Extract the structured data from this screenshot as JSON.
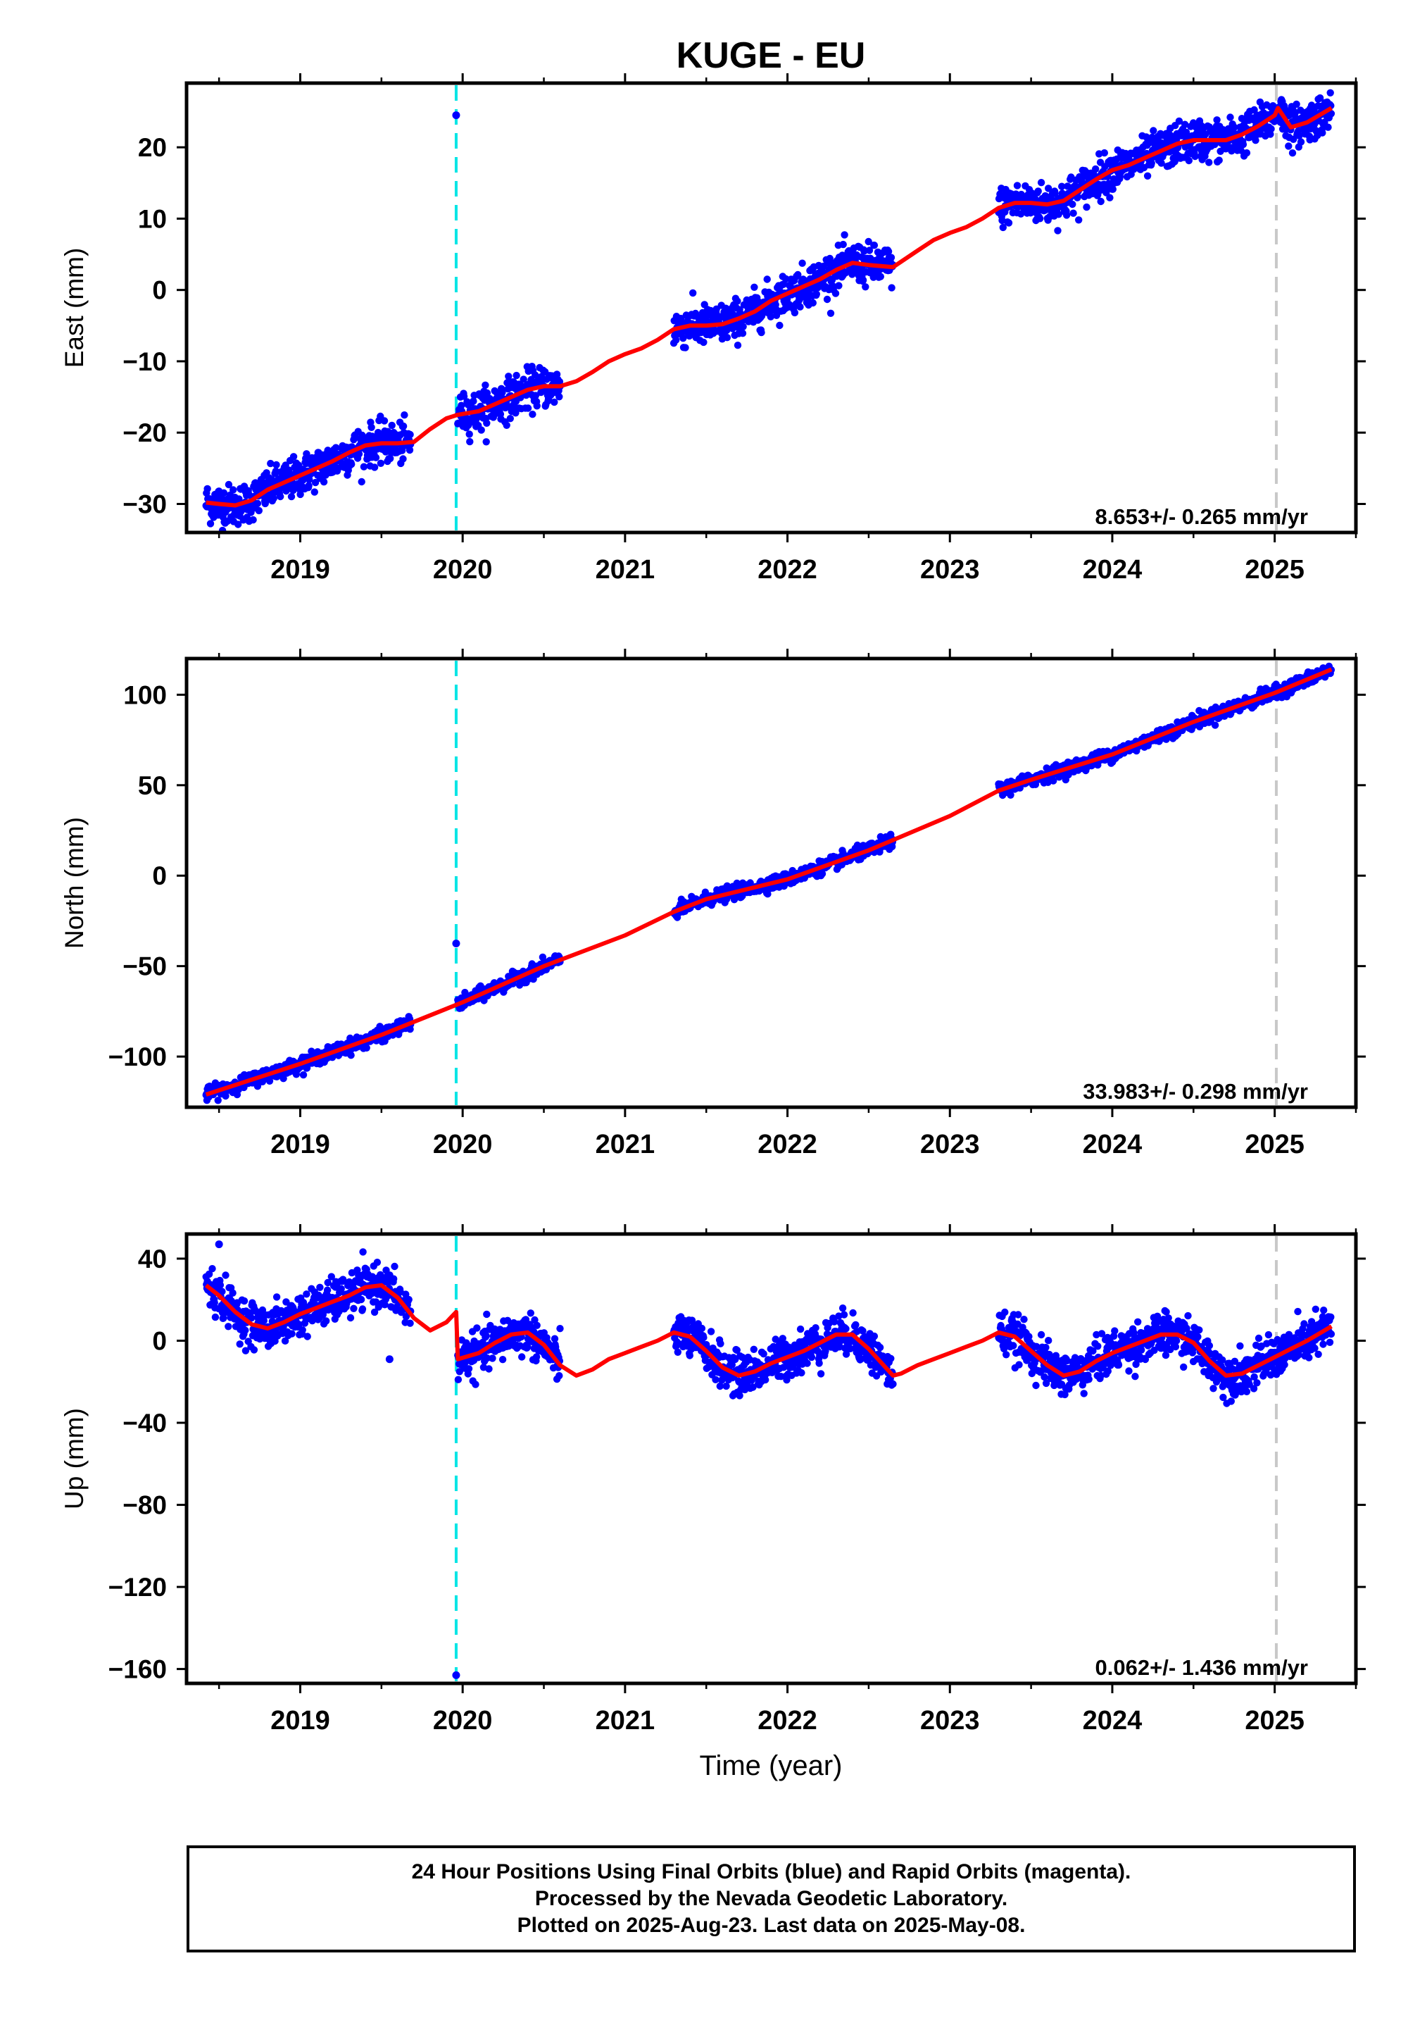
{
  "title": "KUGE - EU",
  "xlabel": "Time (year)",
  "colors": {
    "final_orbits": "#0000ff",
    "model": "#ff0000",
    "step_antenna": "#00e5e5",
    "step_other": "#c8c8c8",
    "axes": "#000000"
  },
  "footer": {
    "line1": "24 Hour Positions Using Final Orbits (blue) and Rapid Orbits (magenta).",
    "line2": "Processed by the Nevada Geodetic Laboratory.",
    "line3": "Plotted on 2025-Aug-23. Last data on 2025-May-08."
  },
  "chart_data": [
    {
      "type": "scatter",
      "component": "east",
      "ylabel": "East (mm)",
      "xlim": [
        2018.3,
        2025.5
      ],
      "ylim": [
        -34,
        29
      ],
      "xticks": [
        2019,
        2020,
        2021,
        2022,
        2023,
        2024,
        2025
      ],
      "yticks": [
        -30,
        -20,
        -10,
        0,
        10,
        20
      ],
      "ytick_labels": [
        "−30",
        "−20",
        "−10",
        "0",
        "10",
        "20"
      ],
      "rate_label": "8.653+/- 0.265 mm/yr",
      "data_segments": [
        [
          2018.42,
          2019.68
        ],
        [
          2019.97,
          2020.6
        ],
        [
          2021.3,
          2022.65
        ],
        [
          2023.3,
          2025.35
        ]
      ],
      "noise_mm": 1.4,
      "outliers": [
        {
          "x": 2019.96,
          "y": 24.5
        }
      ],
      "model_line": {
        "name": "model",
        "x": [
          2018.42,
          2018.5,
          2018.6,
          2018.7,
          2018.8,
          2018.9,
          2019.0,
          2019.1,
          2019.2,
          2019.3,
          2019.4,
          2019.5,
          2019.6,
          2019.7,
          2019.8,
          2019.9,
          2019.97,
          2020.1,
          2020.2,
          2020.3,
          2020.4,
          2020.5,
          2020.6,
          2020.7,
          2020.8,
          2020.9,
          2021.0,
          2021.1,
          2021.2,
          2021.3,
          2021.4,
          2021.5,
          2021.6,
          2021.7,
          2021.8,
          2021.9,
          2022.0,
          2022.1,
          2022.2,
          2022.3,
          2022.4,
          2022.5,
          2022.65,
          2022.8,
          2022.9,
          2023.0,
          2023.1,
          2023.2,
          2023.3,
          2023.4,
          2023.5,
          2023.6,
          2023.7,
          2023.8,
          2023.9,
          2024.0,
          2024.1,
          2024.2,
          2024.3,
          2024.4,
          2024.5,
          2024.6,
          2024.7,
          2024.8,
          2024.9,
          2025.0,
          2025.02,
          2025.1,
          2025.2,
          2025.35
        ],
        "y": [
          -29.8,
          -30,
          -30.2,
          -29.5,
          -28.0,
          -27.0,
          -26.0,
          -25.0,
          -24.0,
          -22.8,
          -21.8,
          -21.5,
          -21.5,
          -21.3,
          -19.5,
          -18.0,
          -17.5,
          -17.0,
          -16.0,
          -15.0,
          -14.0,
          -13.5,
          -13.5,
          -12.8,
          -11.5,
          -10.0,
          -9.0,
          -8.2,
          -7.0,
          -5.5,
          -5.0,
          -5.0,
          -4.8,
          -4.0,
          -3.0,
          -1.5,
          -0.5,
          0.5,
          1.5,
          2.8,
          3.8,
          3.5,
          3.2,
          5.5,
          7.0,
          8.0,
          8.8,
          10.0,
          11.5,
          12.2,
          12.2,
          12.0,
          12.5,
          14.0,
          15.5,
          16.8,
          17.5,
          18.5,
          19.5,
          20.5,
          21.0,
          21.0,
          21.0,
          21.8,
          23.0,
          24.5,
          25.5,
          22.8,
          23.5,
          25.5
        ]
      }
    },
    {
      "type": "scatter",
      "component": "north",
      "ylabel": "North (mm)",
      "xlim": [
        2018.3,
        2025.5
      ],
      "ylim": [
        -128,
        120
      ],
      "xticks": [
        2019,
        2020,
        2021,
        2022,
        2023,
        2024,
        2025
      ],
      "yticks": [
        -100,
        -50,
        0,
        50,
        100
      ],
      "ytick_labels": [
        "−100",
        "−50",
        "0",
        "50",
        "100"
      ],
      "rate_label": "33.983+/- 0.298 mm/yr",
      "data_segments": [
        [
          2018.42,
          2019.68
        ],
        [
          2019.97,
          2020.6
        ],
        [
          2021.3,
          2022.65
        ],
        [
          2023.3,
          2025.35
        ]
      ],
      "noise_mm": 1.8,
      "outliers": [
        {
          "x": 2019.96,
          "y": -37.5
        }
      ],
      "model_line": {
        "name": "model",
        "x": [
          2018.42,
          2019.0,
          2019.5,
          2020.0,
          2020.5,
          2021.0,
          2021.3,
          2021.5,
          2022.0,
          2022.5,
          2023.0,
          2023.3,
          2023.5,
          2024.0,
          2024.5,
          2025.0,
          2025.35
        ],
        "y": [
          -121,
          -104,
          -88,
          -70,
          -50,
          -33,
          -20,
          -13,
          -2,
          14,
          33,
          47,
          53,
          67,
          85,
          101,
          114
        ]
      }
    },
    {
      "type": "scatter",
      "component": "up",
      "ylabel": "Up (mm)",
      "xlim": [
        2018.3,
        2025.5
      ],
      "ylim": [
        -167,
        52
      ],
      "xticks": [
        2019,
        2020,
        2021,
        2022,
        2023,
        2024,
        2025
      ],
      "yticks": [
        -160,
        -120,
        -80,
        -40,
        0,
        40
      ],
      "ytick_labels": [
        "−160",
        "−120",
        "−80",
        "−40",
        "0",
        "40"
      ],
      "rate_label": "0.062+/- 1.436 mm/yr",
      "data_segments": [
        [
          2018.42,
          2019.68
        ],
        [
          2019.97,
          2020.6
        ],
        [
          2021.3,
          2022.65
        ],
        [
          2023.3,
          2025.35
        ]
      ],
      "noise_mm": 5.0,
      "outliers": [
        {
          "x": 2019.96,
          "y": -163
        },
        {
          "x": 2018.5,
          "y": 47
        },
        {
          "x": 2019.55,
          "y": -9
        }
      ],
      "model_line": {
        "name": "model",
        "x": [
          2018.42,
          2018.5,
          2018.6,
          2018.7,
          2018.8,
          2018.9,
          2019.0,
          2019.1,
          2019.2,
          2019.3,
          2019.4,
          2019.5,
          2019.6,
          2019.7,
          2019.8,
          2019.9,
          2019.96,
          2019.97,
          2020.1,
          2020.2,
          2020.3,
          2020.4,
          2020.5,
          2020.6,
          2020.7,
          2020.8,
          2020.9,
          2021.0,
          2021.1,
          2021.2,
          2021.3,
          2021.4,
          2021.5,
          2021.6,
          2021.7,
          2021.8,
          2021.9,
          2022.0,
          2022.1,
          2022.2,
          2022.3,
          2022.4,
          2022.5,
          2022.65,
          2022.7,
          2022.8,
          2022.9,
          2023.0,
          2023.1,
          2023.2,
          2023.3,
          2023.4,
          2023.5,
          2023.6,
          2023.7,
          2023.8,
          2023.9,
          2024.0,
          2024.1,
          2024.2,
          2024.3,
          2024.4,
          2024.5,
          2024.6,
          2024.7,
          2024.8,
          2024.9,
          2025.0,
          2025.1,
          2025.2,
          2025.35
        ],
        "y": [
          27,
          22,
          14,
          8,
          6,
          9,
          13,
          16,
          19,
          22,
          26,
          27,
          21,
          11,
          5,
          9,
          14,
          -9,
          -6,
          -1,
          3,
          4,
          -2,
          -12,
          -17,
          -14,
          -9,
          -6,
          -3,
          0,
          4,
          2,
          -5,
          -13,
          -17,
          -15,
          -11,
          -8,
          -5,
          -1,
          3,
          3,
          -4,
          -17,
          -16,
          -12,
          -9,
          -6,
          -3,
          0,
          4,
          2,
          -5,
          -12,
          -17,
          -15,
          -10,
          -6,
          -3,
          0,
          3,
          3,
          -1,
          -10,
          -17,
          -16,
          -12,
          -8,
          -4,
          0,
          7
        ]
      }
    }
  ]
}
